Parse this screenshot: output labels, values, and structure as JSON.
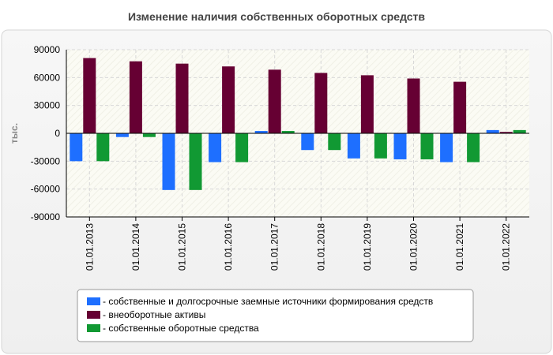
{
  "chart_data": {
    "type": "bar",
    "title": "Изменение наличия собственных оборотных средств",
    "ylabel": "тыс.",
    "xlabel": "",
    "ylim": [
      -90000,
      90000
    ],
    "yticks": [
      90000,
      60000,
      30000,
      0,
      -30000,
      -60000,
      -90000
    ],
    "grid": true,
    "legend_position": "bottom",
    "categories": [
      "01.01.2013",
      "01.01.2014",
      "01.01.2015",
      "01.01.2016",
      "01.01.2017",
      "01.01.2018",
      "01.01.2019",
      "01.01.2020",
      "01.01.2021",
      "01.01.2022"
    ],
    "series": [
      {
        "name": "собственные и долгосрочные заемные источники формирования средств",
        "color": "#1e6fff",
        "values": [
          -30000,
          -4000,
          -61000,
          -31000,
          2500,
          -18000,
          -27000,
          -28000,
          -31000,
          3500
        ]
      },
      {
        "name": "внеоборотные активы",
        "color": "#660033",
        "values": [
          81000,
          77500,
          75000,
          72000,
          68500,
          65000,
          62500,
          59000,
          55500,
          1500
        ]
      },
      {
        "name": "собственные оборотные средства",
        "color": "#119933",
        "values": [
          -30000,
          -4000,
          -61000,
          -31000,
          2500,
          -18000,
          -27000,
          -28000,
          -31000,
          3500
        ]
      }
    ]
  }
}
